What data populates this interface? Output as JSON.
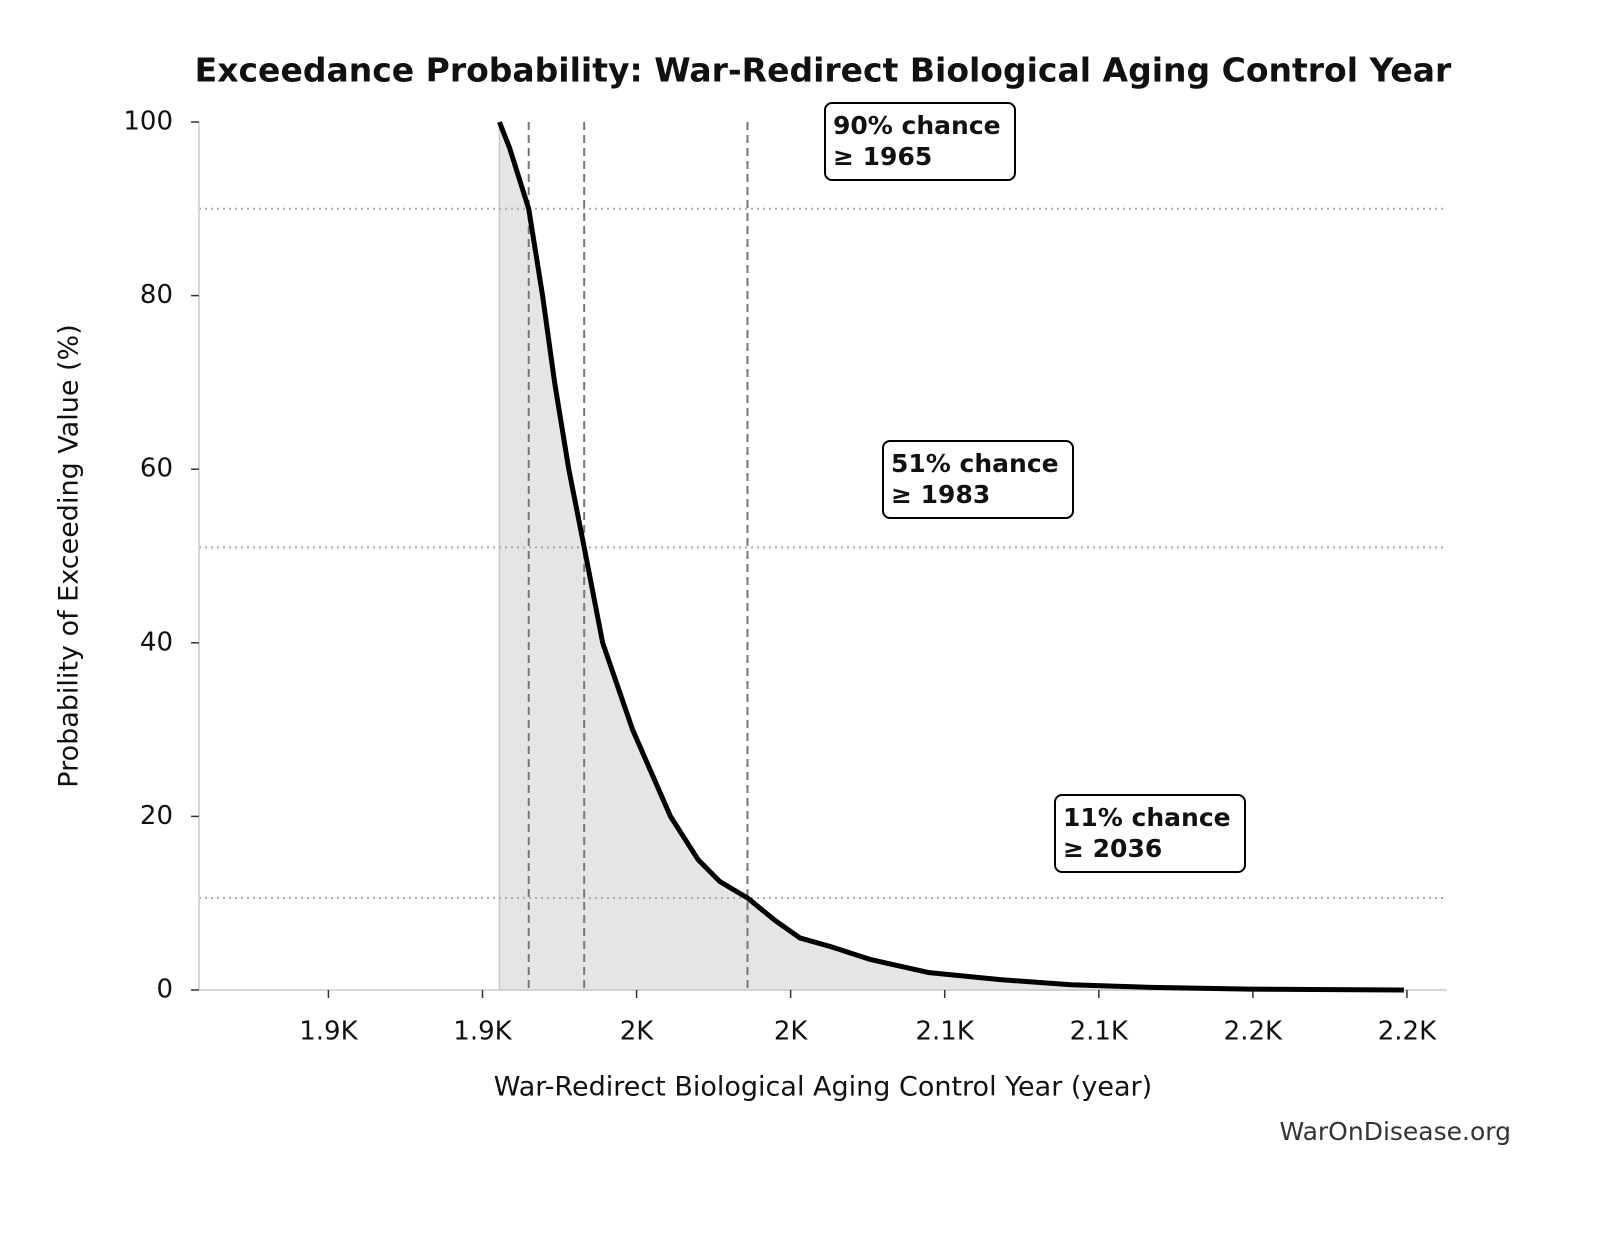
{
  "chart_data": {
    "type": "line",
    "title": "Exceedance Probability: War-Redirect Biological Aging Control Year",
    "x_label": "War-Redirect Biological Aging Control Year (year)",
    "y_label": "Probability of Exceeding Value (%)",
    "source": "WarOnDisease.org",
    "x": [
      1955.5,
      1958.8,
      1965,
      1969.5,
      1973.4,
      1978,
      1983,
      1989,
      1998.7,
      2011,
      2020,
      2027,
      2036,
      2045,
      2053,
      2063,
      2076,
      2095,
      2118,
      2141,
      2167,
      2199,
      2249
    ],
    "series": [
      {
        "color": "#000000",
        "fill": "#e5e5e5",
        "values": [
          100,
          97,
          90,
          80,
          70,
          60,
          51,
          40,
          30,
          20,
          15,
          12.5,
          10.6,
          8,
          6,
          5,
          3.5,
          2,
          1.2,
          0.6,
          0.3,
          0.1,
          0
        ]
      }
    ],
    "thresholds": [
      {
        "x": 1965,
        "y": 90,
        "lines": [
          "90% chance",
          "≥ 1965"
        ]
      },
      {
        "x": 1983,
        "y": 51,
        "lines": [
          "51% chance",
          "≥ 1983"
        ]
      },
      {
        "x": 2036,
        "y": 10.6,
        "lines": [
          "11% chance",
          "≥ 2036"
        ]
      }
    ],
    "xlim": [
      1858,
      2263
    ],
    "ylim": [
      0,
      100
    ],
    "xticks": [
      {
        "value": 1900,
        "label": "1.9K"
      },
      {
        "value": 1950,
        "label": "1.9K"
      },
      {
        "value": 2000,
        "label": "2K"
      },
      {
        "value": 2050,
        "label": "2K"
      },
      {
        "value": 2100,
        "label": "2.1K"
      },
      {
        "value": 2150,
        "label": "2.1K"
      },
      {
        "value": 2200,
        "label": "2.2K"
      },
      {
        "value": 2250,
        "label": "2.2K"
      }
    ],
    "yticks": [
      0,
      20,
      40,
      60,
      80,
      100
    ]
  }
}
